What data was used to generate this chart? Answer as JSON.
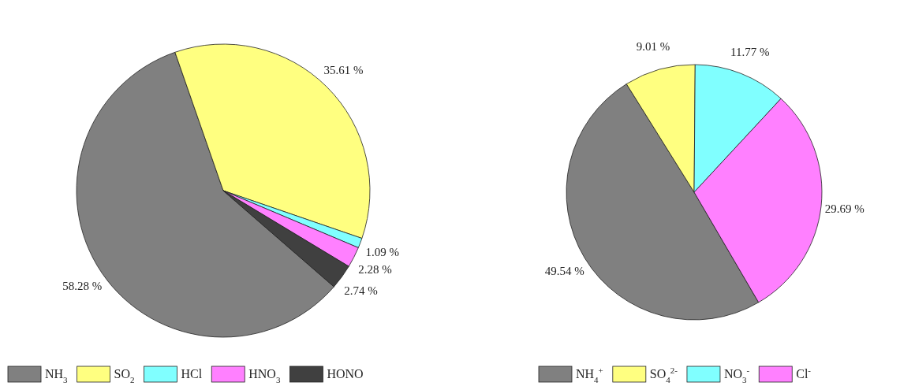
{
  "chart_data": [
    {
      "type": "pie",
      "categories": [
        "NH$_{3}$",
        "SO$_{2}$",
        "HCl",
        "HNO$_{3}$",
        "HONO"
      ],
      "values": [
        58.28,
        35.61,
        1.09,
        2.28,
        2.74
      ],
      "colors": [
        "#808080",
        "#ffff80",
        "#80ffff",
        "#ff80ff",
        "#404040"
      ],
      "value_labels": [
        "58.28 %",
        "35.61 %",
        "1.09 %",
        "2.28 %",
        "2.74 %"
      ],
      "legend": "bottom"
    },
    {
      "type": "pie",
      "categories": [
        "NH$_{4}$$^{+}$",
        "SO$_{4}$$^{2-}$",
        "NO$_{3}$$^{-}$",
        "Cl$^{-}$"
      ],
      "values": [
        49.54,
        9.01,
        11.77,
        29.69
      ],
      "colors": [
        "#808080",
        "#ffff80",
        "#80ffff",
        "#ff80ff"
      ],
      "value_labels": [
        "49.54 %",
        "9.01 %",
        "11.77 %",
        "29.69 %"
      ],
      "legend": "bottom"
    }
  ]
}
